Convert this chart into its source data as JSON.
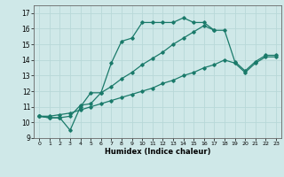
{
  "xlabel": "Humidex (Indice chaleur)",
  "bg_color": "#cfe8e8",
  "grid_color": "#b8d8d8",
  "line_color": "#1a7a6a",
  "xlim": [
    -0.5,
    23.5
  ],
  "ylim": [
    9,
    17.5
  ],
  "yticks": [
    9,
    10,
    11,
    12,
    13,
    14,
    15,
    16,
    17
  ],
  "xticks": [
    0,
    1,
    2,
    3,
    4,
    5,
    6,
    7,
    8,
    9,
    10,
    11,
    12,
    13,
    14,
    15,
    16,
    17,
    18,
    19,
    20,
    21,
    22,
    23
  ],
  "series1_x": [
    0,
    1,
    2,
    3,
    4,
    5,
    6,
    7,
    8,
    9,
    10,
    11,
    12,
    13,
    14,
    15,
    16,
    17
  ],
  "series1_y": [
    10.4,
    10.3,
    10.3,
    9.5,
    11.0,
    11.9,
    11.9,
    13.8,
    15.2,
    15.4,
    16.4,
    16.4,
    16.4,
    16.4,
    16.7,
    16.4,
    16.4,
    15.9
  ],
  "series2_x": [
    0,
    1,
    2,
    3,
    4,
    5,
    6,
    7,
    8,
    9,
    10,
    11,
    12,
    13,
    14,
    15,
    16,
    17,
    18,
    19,
    20,
    21,
    22,
    23
  ],
  "series2_y": [
    10.4,
    10.3,
    10.3,
    10.4,
    11.1,
    11.2,
    11.9,
    12.3,
    12.8,
    13.2,
    13.7,
    14.1,
    14.5,
    15.0,
    15.4,
    15.8,
    16.2,
    15.9,
    15.9,
    13.9,
    13.3,
    13.9,
    14.3,
    14.3
  ],
  "series3_x": [
    0,
    1,
    2,
    3,
    4,
    5,
    6,
    7,
    8,
    9,
    10,
    11,
    12,
    13,
    14,
    15,
    16,
    17,
    18,
    19,
    20,
    21,
    22,
    23
  ],
  "series3_y": [
    10.4,
    10.4,
    10.5,
    10.6,
    10.8,
    11.0,
    11.2,
    11.4,
    11.6,
    11.8,
    12.0,
    12.2,
    12.5,
    12.7,
    13.0,
    13.2,
    13.5,
    13.7,
    14.0,
    13.8,
    13.2,
    13.8,
    14.2,
    14.2
  ]
}
